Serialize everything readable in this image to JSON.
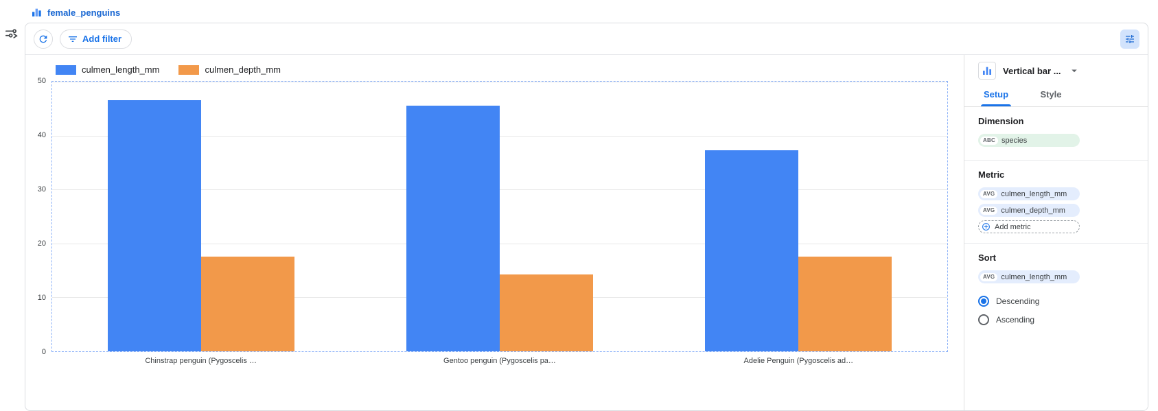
{
  "header": {
    "title": "female_penguins"
  },
  "toolbar": {
    "add_filter_label": "Add filter"
  },
  "icons": {
    "report-logo-icon": "bar-chart",
    "panel-toggle-icon": "sliders-with-arrow",
    "refresh-icon": "refresh-arrow",
    "filter-icon": "filter-list",
    "properties-icon": "tune-sliders",
    "chart-type-icon": "vertical-bar-chart",
    "chevron-down-icon": "▾",
    "add-circle-icon": "⊕"
  },
  "colors": {
    "accent": "#1a73e8",
    "bar_blue": "#4285f4",
    "bar_orange": "#f2994a",
    "chip_blue_bg": "#e4edfd",
    "chip_green_bg": "#e2f3e8",
    "props_button_bg": "#d2e3fc"
  },
  "panel": {
    "chart_type": "Vertical bar ...",
    "tabs": [
      {
        "label": "Setup",
        "active": true
      },
      {
        "label": "Style",
        "active": false
      }
    ],
    "dimension": {
      "heading": "Dimension",
      "chips": [
        {
          "badge": "ABC",
          "label": "species"
        }
      ]
    },
    "metric": {
      "heading": "Metric",
      "chips": [
        {
          "badge": "AVG",
          "label": "culmen_length_mm"
        },
        {
          "badge": "AVG",
          "label": "culmen_depth_mm"
        }
      ],
      "add_label": "Add metric"
    },
    "sort": {
      "heading": "Sort",
      "chips": [
        {
          "badge": "AVG",
          "label": "culmen_length_mm"
        }
      ],
      "order_options": [
        {
          "label": "Descending",
          "selected": true
        },
        {
          "label": "Ascending",
          "selected": false
        }
      ]
    }
  },
  "chart_data": {
    "type": "bar",
    "title": "",
    "categories": [
      "Chinstrap penguin (Pygoscelis …",
      "Gentoo penguin (Pygoscelis pa…",
      "Adelie Penguin (Pygoscelis ad…"
    ],
    "series": [
      {
        "name": "culmen_length_mm",
        "color": "#4285f4",
        "values": [
          46.6,
          45.5,
          37.3
        ]
      },
      {
        "name": "culmen_depth_mm",
        "color": "#f2994a",
        "values": [
          17.6,
          14.2,
          17.6
        ]
      }
    ],
    "xlabel": "",
    "ylabel": "",
    "ylim": [
      0,
      50
    ],
    "yticks": [
      0,
      10,
      20,
      30,
      40,
      50
    ],
    "grid": true,
    "legend_position": "top"
  }
}
